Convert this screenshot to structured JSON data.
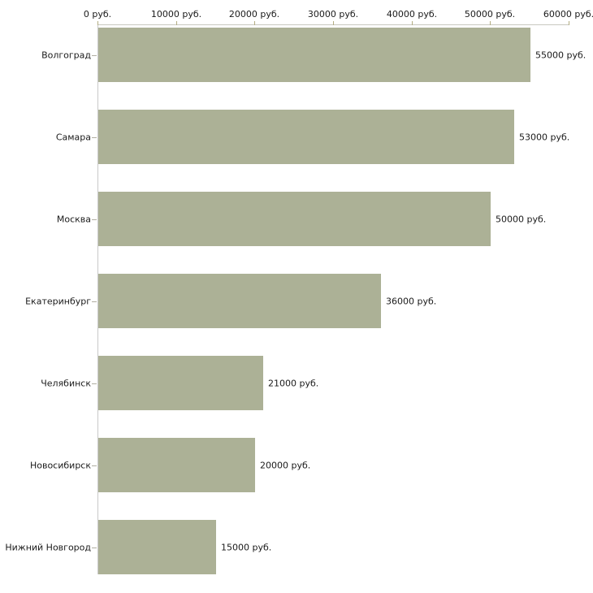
{
  "chart_data": {
    "type": "bar",
    "orientation": "horizontal",
    "title": "",
    "xlabel": "",
    "ylabel": "",
    "grid": false,
    "legend": false,
    "categories": [
      "Волгоград",
      "Самара",
      "Москва",
      "Екатеринбург",
      "Челябинск",
      "Новосибирск",
      "Нижний Новгород"
    ],
    "values": [
      55000,
      53000,
      50000,
      36000,
      21000,
      20000,
      15000
    ],
    "value_labels": [
      "55000 руб.",
      "53000 руб.",
      "50000 руб.",
      "36000 руб.",
      "21000 руб.",
      "20000 руб.",
      "15000 руб."
    ],
    "x_axis": {
      "position": "top",
      "min": 0,
      "max": 60000,
      "ticks": [
        0,
        10000,
        20000,
        30000,
        40000,
        50000,
        60000
      ],
      "tick_labels": [
        "0 руб.",
        "10000 руб.",
        "20000 руб.",
        "30000 руб.",
        "40000 руб.",
        "50000 руб.",
        "60000 руб."
      ]
    },
    "colors": {
      "bar": "#acb196",
      "x_axis_line": "#c8c8c0",
      "y_axis_line": "#c9c9c9",
      "tick": "#b3ad82",
      "category_tick": "#b0aea2",
      "text": "#1a1a1a",
      "background": "#ffffff"
    }
  }
}
